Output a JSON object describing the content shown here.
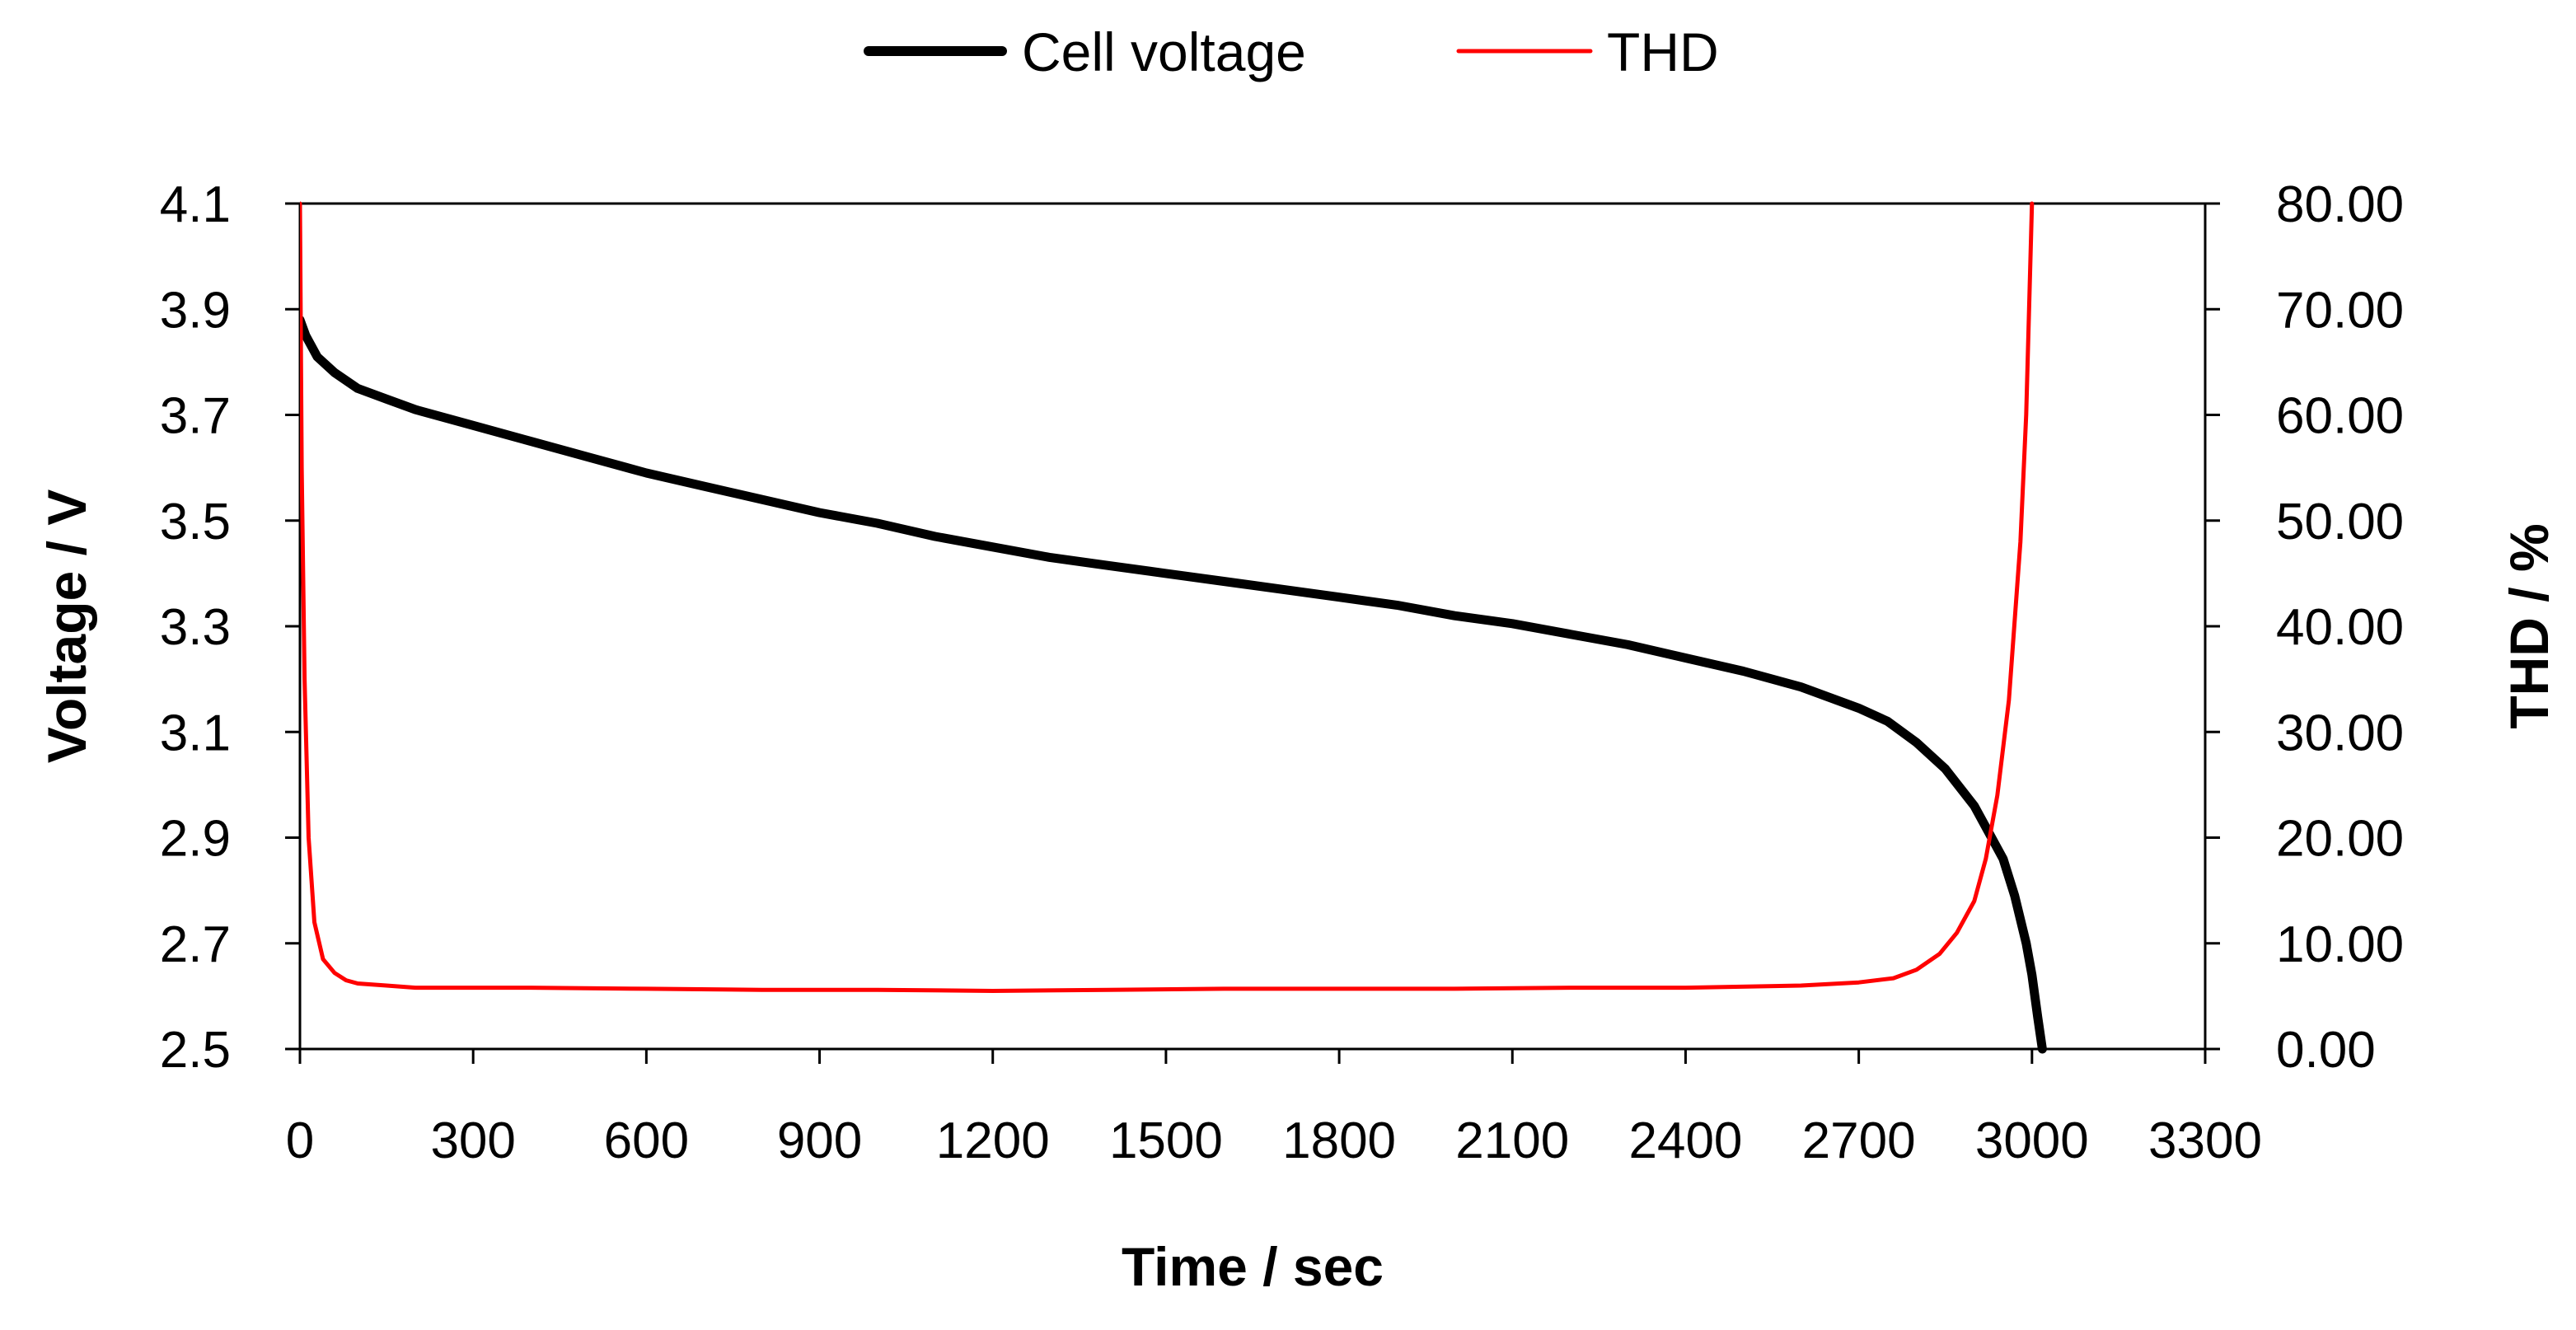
{
  "chart_data": {
    "type": "line",
    "title": "",
    "xlabel": "Time / sec",
    "ylabel": "Voltage / V",
    "y2label": "THD / %",
    "xlim": [
      0,
      3300
    ],
    "ylim": [
      2.5,
      4.1
    ],
    "y2lim": [
      0,
      80
    ],
    "x_ticks": [
      "0",
      "300",
      "600",
      "900",
      "1200",
      "1500",
      "1800",
      "2100",
      "2400",
      "2700",
      "3000",
      "3300"
    ],
    "y_ticks": [
      "2.5",
      "2.7",
      "2.9",
      "3.1",
      "3.3",
      "3.5",
      "3.7",
      "3.9",
      "4.1"
    ],
    "y2_ticks": [
      "0.00",
      "10.00",
      "20.00",
      "30.00",
      "40.00",
      "50.00",
      "60.00",
      "70.00",
      "80.00"
    ],
    "grid": false,
    "legend_position": "top-center",
    "series": [
      {
        "name": "Cell voltage",
        "axis": "left",
        "color": "#000000",
        "x": [
          0,
          10,
          30,
          60,
          100,
          150,
          200,
          300,
          400,
          500,
          600,
          700,
          800,
          900,
          1000,
          1100,
          1200,
          1300,
          1400,
          1500,
          1600,
          1700,
          1800,
          1900,
          2000,
          2100,
          2200,
          2300,
          2400,
          2500,
          2600,
          2700,
          2750,
          2800,
          2850,
          2900,
          2950,
          2970,
          2990,
          3000,
          3010,
          3018
        ],
        "values": [
          3.88,
          3.85,
          3.81,
          3.78,
          3.75,
          3.73,
          3.71,
          3.68,
          3.65,
          3.62,
          3.59,
          3.565,
          3.54,
          3.515,
          3.495,
          3.47,
          3.45,
          3.43,
          3.415,
          3.4,
          3.385,
          3.37,
          3.355,
          3.34,
          3.32,
          3.305,
          3.285,
          3.265,
          3.24,
          3.215,
          3.185,
          3.145,
          3.12,
          3.08,
          3.03,
          2.96,
          2.86,
          2.79,
          2.7,
          2.64,
          2.56,
          2.5
        ]
      },
      {
        "name": "THD",
        "axis": "right",
        "color": "#ff0000",
        "x": [
          0,
          3,
          8,
          15,
          25,
          40,
          60,
          80,
          100,
          150,
          200,
          300,
          400,
          600,
          800,
          1000,
          1200,
          1400,
          1600,
          1800,
          2000,
          2200,
          2400,
          2600,
          2700,
          2760,
          2800,
          2840,
          2870,
          2900,
          2920,
          2940,
          2960,
          2980,
          2990,
          2995,
          3000
        ],
        "values": [
          80,
          55,
          35,
          20,
          12,
          8.5,
          7.2,
          6.5,
          6.2,
          6.0,
          5.8,
          5.8,
          5.8,
          5.7,
          5.6,
          5.6,
          5.5,
          5.6,
          5.7,
          5.7,
          5.7,
          5.8,
          5.8,
          6.0,
          6.3,
          6.7,
          7.5,
          9.0,
          11,
          14,
          18,
          24,
          33,
          48,
          60,
          70,
          80
        ]
      }
    ]
  }
}
